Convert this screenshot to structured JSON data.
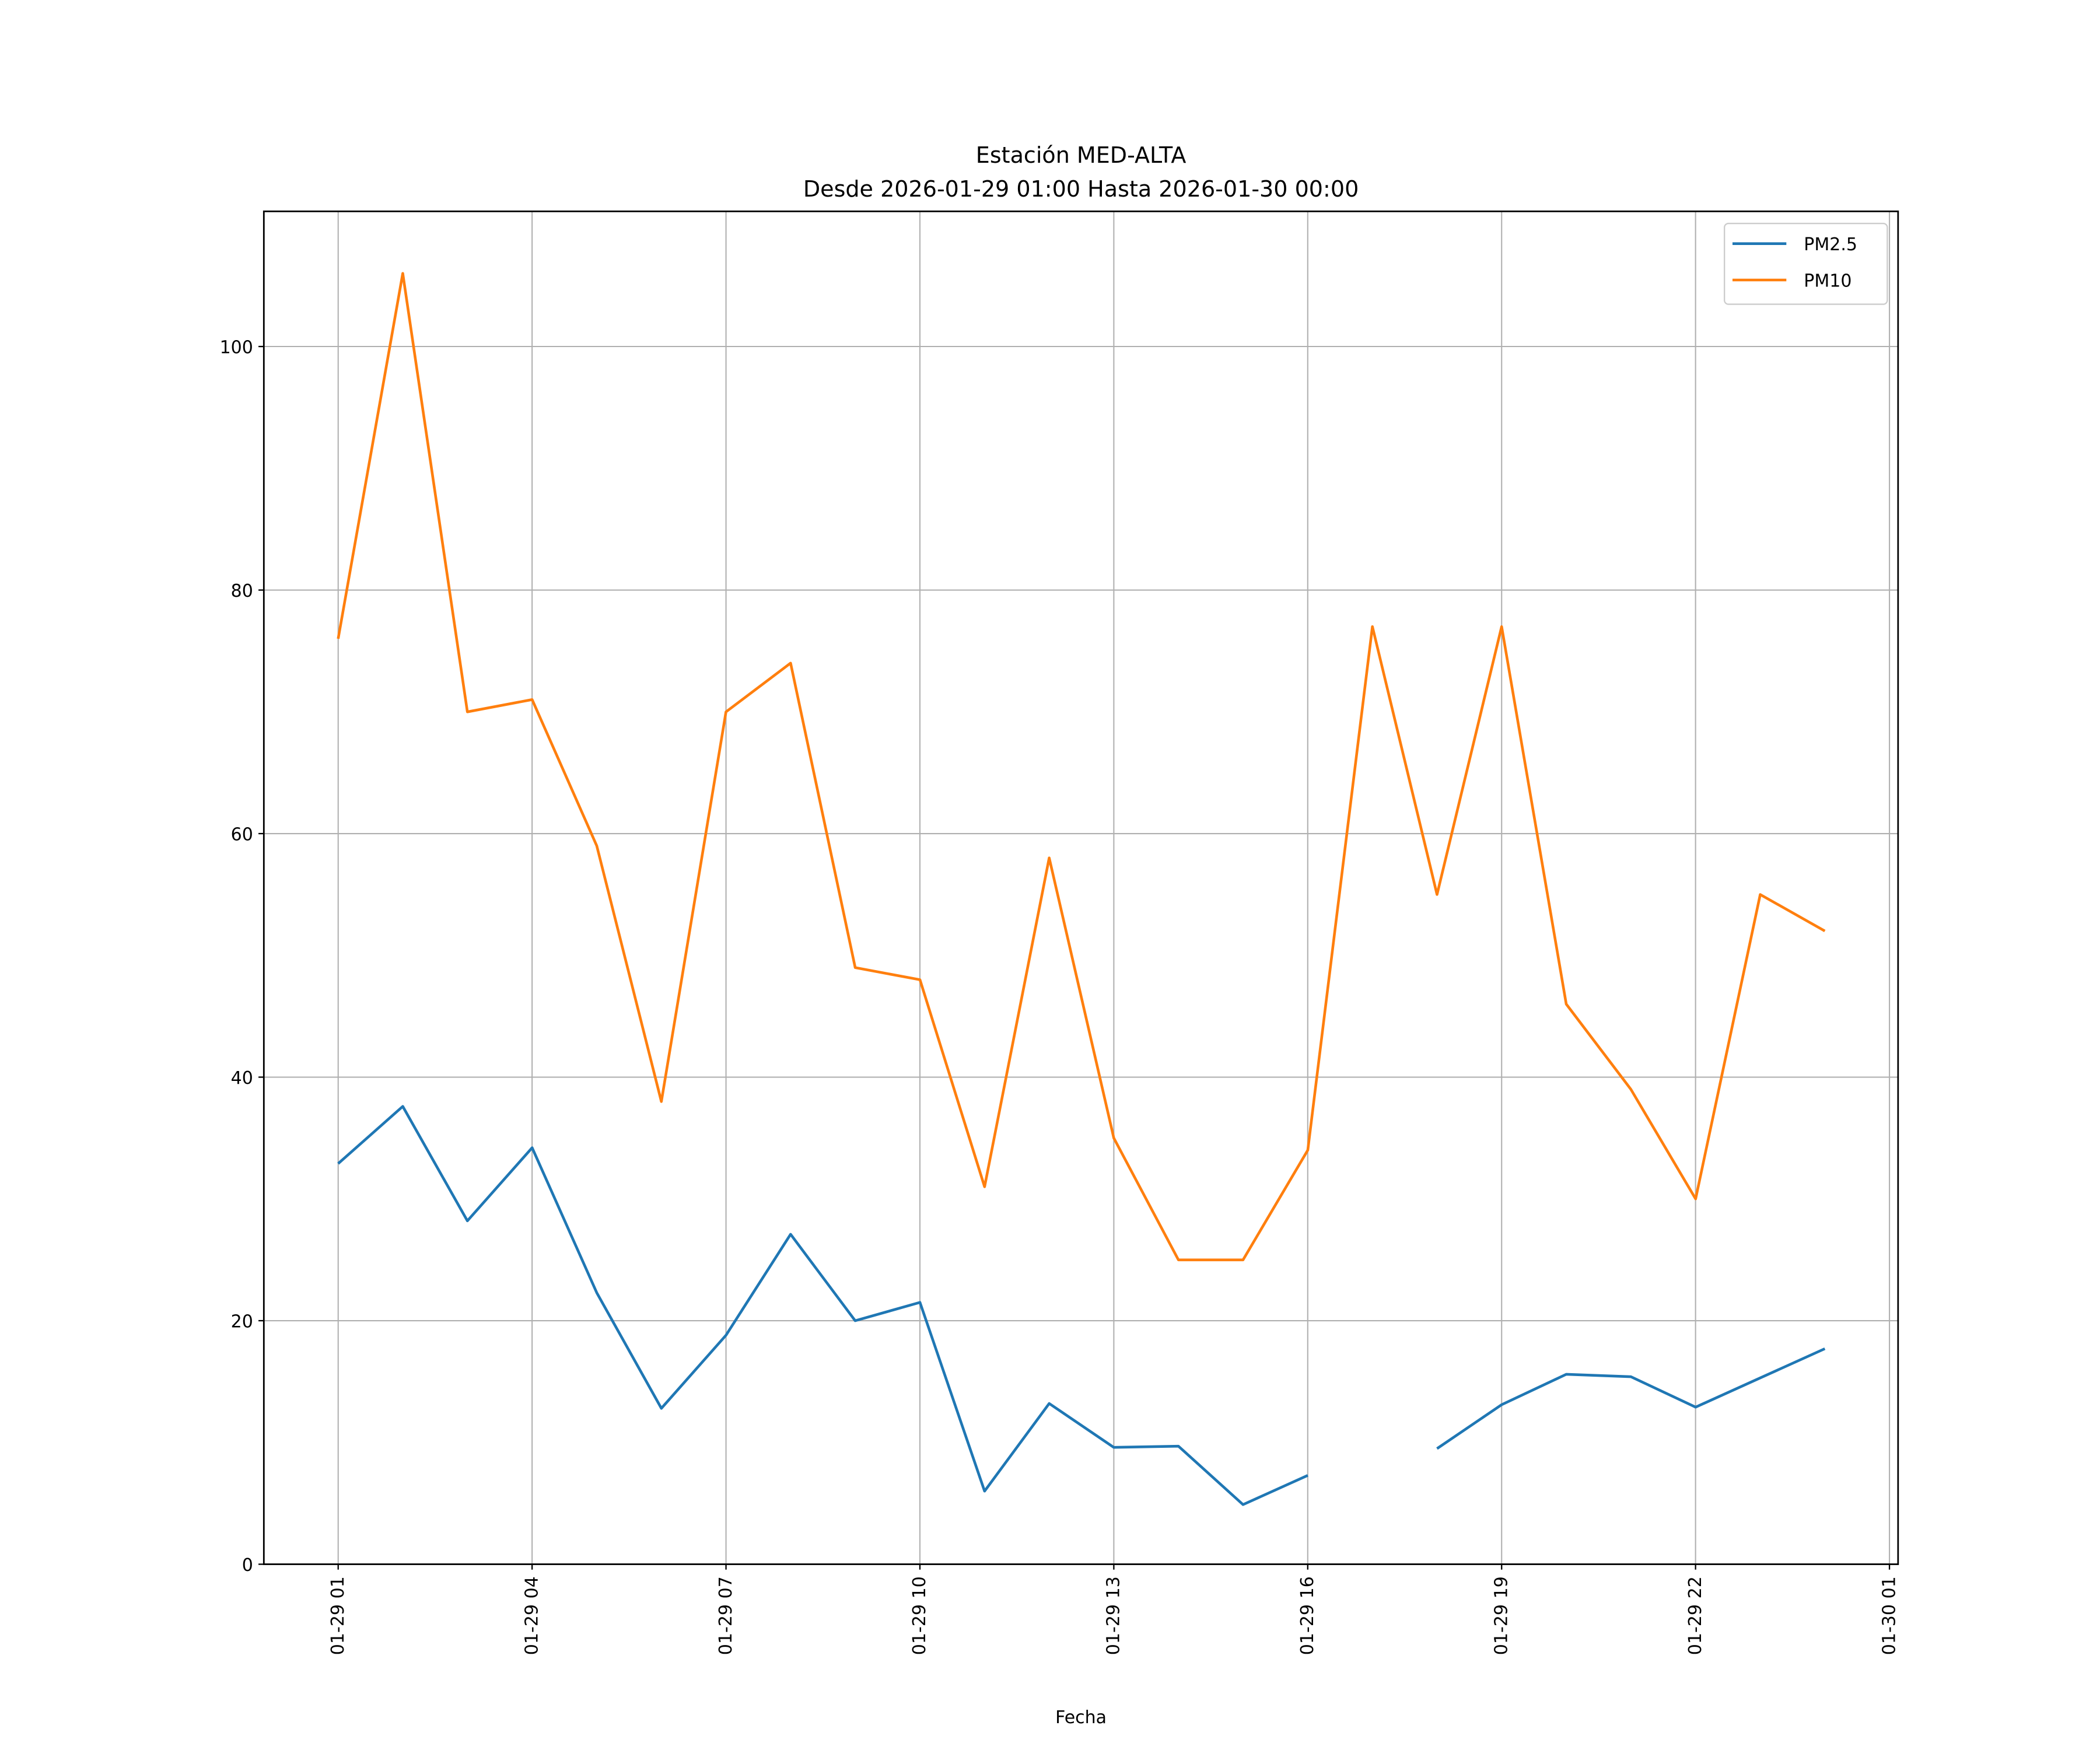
{
  "chart_data": {
    "type": "line",
    "title": "Estación MED-ALTA",
    "subtitle": "Desde 2026-01-29 01:00 Hasta 2026-01-30 00:00",
    "xlabel": "Fecha",
    "ylabel": "",
    "x": [
      "2026-01-29T01:00",
      "2026-01-29T02:00",
      "2026-01-29T03:00",
      "2026-01-29T04:00",
      "2026-01-29T05:00",
      "2026-01-29T06:00",
      "2026-01-29T07:00",
      "2026-01-29T08:00",
      "2026-01-29T09:00",
      "2026-01-29T10:00",
      "2026-01-29T11:00",
      "2026-01-29T12:00",
      "2026-01-29T13:00",
      "2026-01-29T14:00",
      "2026-01-29T15:00",
      "2026-01-29T16:00",
      "2026-01-29T17:00",
      "2026-01-29T18:00",
      "2026-01-29T19:00",
      "2026-01-29T20:00",
      "2026-01-29T21:00",
      "2026-01-29T22:00",
      "2026-01-29T23:00",
      "2026-01-30T00:00"
    ],
    "series": [
      {
        "name": "PM2.5",
        "color": "#1f77b4",
        "values": [
          32.9,
          37.6,
          28.2,
          34.2,
          22.3,
          12.8,
          18.8,
          27.1,
          20.0,
          21.5,
          6.0,
          13.2,
          9.6,
          9.7,
          4.9,
          7.3,
          null,
          9.5,
          13.1,
          15.6,
          15.4,
          12.9,
          15.3,
          17.7
        ]
      },
      {
        "name": "PM10",
        "color": "#ff7f0e",
        "values": [
          76,
          106,
          70,
          71,
          59,
          38,
          70,
          74,
          49,
          48,
          31,
          58,
          35,
          25,
          25,
          34,
          77,
          55,
          77,
          46,
          39,
          30,
          55,
          52
        ]
      }
    ],
    "xlim": [
      "2026-01-28T23:51",
      "2026-01-30T01:08"
    ],
    "ylim": [
      0,
      111.1
    ],
    "yticks": [
      0,
      20,
      40,
      60,
      80,
      100
    ],
    "xticks": [
      {
        "at": "2026-01-29T01:00",
        "label": "01-29 01"
      },
      {
        "at": "2026-01-29T04:00",
        "label": "01-29 04"
      },
      {
        "at": "2026-01-29T07:00",
        "label": "01-29 07"
      },
      {
        "at": "2026-01-29T10:00",
        "label": "01-29 10"
      },
      {
        "at": "2026-01-29T13:00",
        "label": "01-29 13"
      },
      {
        "at": "2026-01-29T16:00",
        "label": "01-29 16"
      },
      {
        "at": "2026-01-29T19:00",
        "label": "01-29 19"
      },
      {
        "at": "2026-01-29T22:00",
        "label": "01-29 22"
      },
      {
        "at": "2026-01-30T01:00",
        "label": "01-30 01"
      }
    ],
    "grid": true,
    "legend_position": "top-right"
  }
}
